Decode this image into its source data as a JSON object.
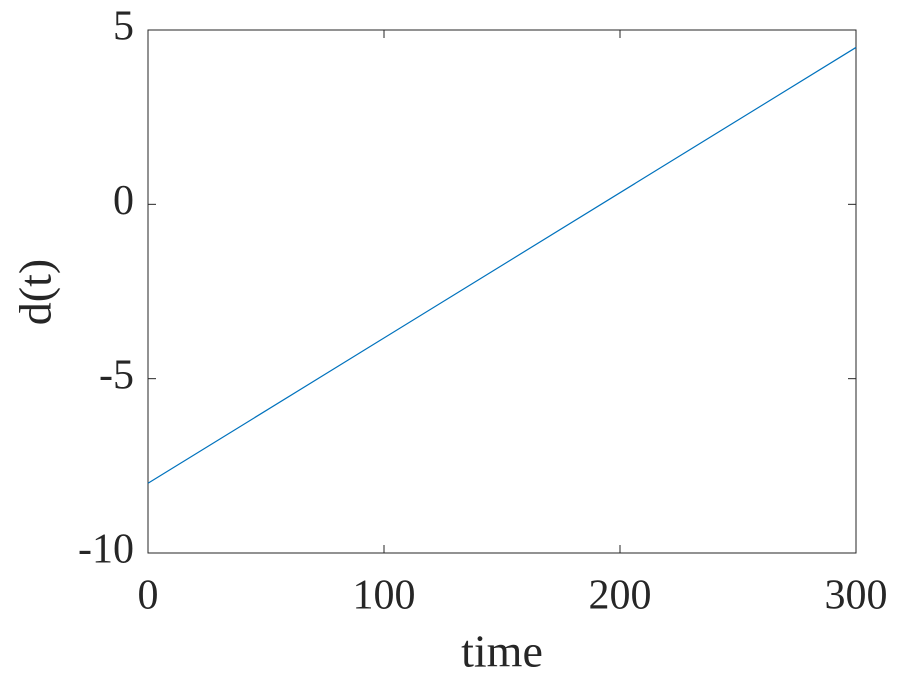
{
  "chart_data": {
    "type": "line",
    "xlabel": "time",
    "ylabel": "d(t)",
    "x": [
      0,
      300
    ],
    "values": [
      -8,
      4.5
    ],
    "color": "#0072bd",
    "xlim": [
      0,
      300
    ],
    "xticks": [
      0,
      100,
      200,
      300
    ],
    "ylim": [
      -10,
      5
    ],
    "yticks": [
      -10,
      -5,
      0,
      5
    ],
    "box": true
  }
}
